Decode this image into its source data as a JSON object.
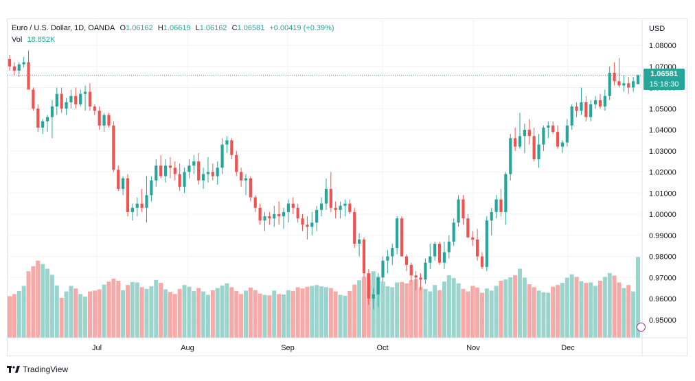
{
  "legend": {
    "symbol": "Euro / U.S. Dollar, 1D, OANDA",
    "open_label": "O",
    "open": "1.06162",
    "high_label": "H",
    "high": "1.06619",
    "low_label": "L",
    "low": "1.06162",
    "close_label": "C",
    "close": "1.06581",
    "change": "+0.00419 (+0.39%)",
    "vol_label": "Vol",
    "vol_value": "18.852K"
  },
  "price_axis": {
    "currency": "USD",
    "ticks": [
      "1.08000",
      "1.07000",
      "1.06000",
      "1.05000",
      "1.04000",
      "1.03000",
      "1.02000",
      "1.01000",
      "1.00000",
      "0.99000",
      "0.98000",
      "0.97000",
      "0.96000",
      "0.95000"
    ]
  },
  "time_axis": {
    "ticks": [
      "Jul",
      "Aug",
      "Sep",
      "Oct",
      "Nov",
      "Dec"
    ]
  },
  "last_price_tag": {
    "price": "1.06581",
    "countdown": "15:18:30"
  },
  "footer": {
    "brand": "TradingView"
  },
  "colors": {
    "up": "#26a69a",
    "down": "#ef5350",
    "up_vol": "#9bd3cd",
    "down_vol": "#f7a9a7",
    "grid": "#f0f3fa"
  },
  "chart_data": {
    "type": "candlestick",
    "title": "Euro / U.S. Dollar, 1D, OANDA",
    "currency": "USD",
    "ylim": [
      0.94,
      1.085
    ],
    "ohlc_vol": [
      [
        1.0735,
        1.0755,
        1.068,
        1.07,
        9.7
      ],
      [
        1.07,
        1.072,
        1.066,
        1.068,
        10.2
      ],
      [
        1.068,
        1.072,
        1.065,
        1.071,
        10.9
      ],
      [
        1.071,
        1.0745,
        1.0695,
        1.072,
        12.1
      ],
      [
        1.072,
        1.0775,
        1.066,
        1.059,
        15.5
      ],
      [
        1.059,
        1.06,
        1.049,
        1.05,
        16.7
      ],
      [
        1.05,
        1.052,
        1.039,
        1.041,
        18.0
      ],
      [
        1.041,
        1.045,
        1.038,
        1.044,
        17.2
      ],
      [
        1.044,
        1.047,
        1.039,
        1.046,
        16.1
      ],
      [
        1.046,
        1.054,
        1.036,
        1.051,
        14.7
      ],
      [
        1.051,
        1.06,
        1.047,
        1.057,
        12.2
      ],
      [
        1.057,
        1.06,
        1.048,
        1.05,
        9.3
      ],
      [
        1.05,
        1.055,
        1.047,
        1.053,
        10.8
      ],
      [
        1.053,
        1.059,
        1.05,
        1.056,
        12.1
      ],
      [
        1.056,
        1.06,
        1.05,
        1.052,
        11.5
      ],
      [
        1.052,
        1.059,
        1.051,
        1.057,
        10.2
      ],
      [
        1.057,
        1.061,
        1.049,
        1.058,
        9.6
      ],
      [
        1.058,
        1.062,
        1.049,
        1.051,
        10.8
      ],
      [
        1.051,
        1.052,
        1.047,
        1.049,
        11.0
      ],
      [
        1.049,
        1.051,
        1.04,
        1.042,
        11.3
      ],
      [
        1.042,
        1.048,
        1.039,
        1.047,
        12.4
      ],
      [
        1.047,
        1.048,
        1.041,
        1.042,
        13.1
      ],
      [
        1.042,
        1.044,
        1.02,
        1.021,
        13.8
      ],
      [
        1.021,
        1.023,
        1.011,
        1.012,
        13.3
      ],
      [
        1.012,
        1.018,
        1.009,
        1.017,
        11.1
      ],
      [
        1.017,
        1.019,
        0.999,
        1.001,
        12.3
      ],
      [
        1.001,
        1.005,
        0.997,
        1.003,
        13.0
      ],
      [
        1.003,
        1.008,
        0.999,
        1.005,
        12.9
      ],
      [
        1.005,
        1.012,
        1.001,
        1.003,
        11.8
      ],
      [
        1.003,
        1.018,
        0.996,
        1.009,
        11.4
      ],
      [
        1.009,
        1.018,
        1.006,
        1.016,
        12.0
      ],
      [
        1.016,
        1.026,
        1.013,
        1.023,
        13.5
      ],
      [
        1.023,
        1.028,
        1.017,
        1.018,
        12.8
      ],
      [
        1.018,
        1.026,
        1.015,
        1.023,
        11.3
      ],
      [
        1.023,
        1.027,
        1.017,
        1.022,
        10.7
      ],
      [
        1.022,
        1.025,
        1.016,
        1.019,
        10.2
      ],
      [
        1.019,
        1.024,
        1.011,
        1.013,
        11.4
      ],
      [
        1.013,
        1.022,
        1.01,
        1.02,
        12.3
      ],
      [
        1.02,
        1.026,
        1.017,
        1.023,
        11.9
      ],
      [
        1.023,
        1.028,
        1.019,
        1.025,
        10.9
      ],
      [
        1.025,
        1.029,
        1.014,
        1.016,
        11.6
      ],
      [
        1.016,
        1.022,
        1.012,
        1.019,
        10.8
      ],
      [
        1.019,
        1.027,
        1.015,
        1.02,
        10.0
      ],
      [
        1.02,
        1.024,
        1.016,
        1.018,
        11.1
      ],
      [
        1.018,
        1.025,
        1.014,
        1.022,
        11.6
      ],
      [
        1.022,
        1.036,
        1.019,
        1.033,
        12.2
      ],
      [
        1.033,
        1.037,
        1.029,
        1.035,
        12.7
      ],
      [
        1.035,
        1.036,
        1.026,
        1.028,
        11.8
      ],
      [
        1.028,
        1.03,
        1.018,
        1.02,
        10.9
      ],
      [
        1.02,
        1.022,
        1.013,
        1.016,
        10.2
      ],
      [
        1.016,
        1.019,
        1.009,
        1.017,
        11.0
      ],
      [
        1.017,
        1.018,
        1.006,
        1.008,
        11.7
      ],
      [
        1.008,
        1.009,
        1.001,
        1.003,
        11.1
      ],
      [
        1.003,
        1.005,
        0.995,
        0.997,
        10.3
      ],
      [
        0.997,
        1.001,
        0.992,
        0.999,
        10.0
      ],
      [
        0.999,
        1.001,
        0.995,
        0.998,
        9.9
      ],
      [
        0.998,
        1.004,
        0.994,
        1.0,
        11.0
      ],
      [
        1.0,
        1.006,
        0.995,
        0.999,
        10.2
      ],
      [
        0.999,
        1.003,
        0.993,
        1.001,
        10.1
      ],
      [
        1.001,
        1.007,
        0.996,
        1.005,
        11.1
      ],
      [
        1.005,
        1.008,
        1.0,
        1.003,
        10.9
      ],
      [
        1.003,
        1.005,
        0.996,
        0.998,
        11.8
      ],
      [
        0.998,
        1.0,
        0.992,
        0.995,
        11.5
      ],
      [
        0.995,
        0.999,
        0.988,
        0.994,
        11.9
      ],
      [
        0.994,
        1.001,
        0.99,
        0.996,
        12.1
      ],
      [
        0.996,
        1.004,
        0.992,
        1.002,
        12.3
      ],
      [
        1.002,
        1.008,
        0.999,
        1.005,
        12.0
      ],
      [
        1.005,
        1.017,
        1.002,
        1.012,
        11.8
      ],
      [
        1.012,
        1.02,
        1.001,
        1.003,
        11.6
      ],
      [
        1.003,
        1.006,
        0.998,
        1.002,
        10.8
      ],
      [
        1.002,
        1.006,
        0.998,
        1.004,
        10.0
      ],
      [
        1.004,
        1.007,
        0.999,
        1.005,
        9.8
      ],
      [
        1.005,
        1.007,
        1.0,
        1.001,
        10.9
      ],
      [
        1.001,
        1.003,
        0.984,
        0.986,
        12.4
      ],
      [
        0.986,
        0.991,
        0.98,
        0.988,
        13.4
      ],
      [
        0.988,
        0.989,
        0.97,
        0.972,
        14.2
      ],
      [
        0.972,
        0.974,
        0.957,
        0.96,
        15.0
      ],
      [
        0.96,
        0.965,
        0.955,
        0.962,
        15.5
      ],
      [
        0.962,
        0.972,
        0.956,
        0.97,
        14.3
      ],
      [
        0.97,
        0.98,
        0.968,
        0.978,
        13.1
      ],
      [
        0.978,
        0.983,
        0.972,
        0.98,
        12.0
      ],
      [
        0.98,
        0.986,
        0.976,
        0.984,
        11.8
      ],
      [
        0.984,
        0.999,
        0.981,
        0.998,
        12.9
      ],
      [
        0.998,
        0.999,
        0.98,
        0.98,
        13.0
      ],
      [
        0.98,
        0.981,
        0.973,
        0.976,
        12.7
      ],
      [
        0.976,
        0.977,
        0.968,
        0.971,
        13.4
      ],
      [
        0.971,
        0.973,
        0.964,
        0.97,
        13.7
      ],
      [
        0.97,
        0.972,
        0.964,
        0.969,
        11.8
      ],
      [
        0.969,
        0.979,
        0.967,
        0.977,
        11.4
      ],
      [
        0.977,
        0.986,
        0.974,
        0.98,
        10.8
      ],
      [
        0.98,
        0.987,
        0.978,
        0.986,
        12.3
      ],
      [
        0.986,
        0.987,
        0.976,
        0.977,
        11.1
      ],
      [
        0.977,
        0.987,
        0.974,
        0.982,
        13.1
      ],
      [
        0.982,
        0.99,
        0.979,
        0.987,
        14.6
      ],
      [
        0.987,
        0.998,
        0.985,
        0.996,
        13.9
      ],
      [
        0.996,
        1.009,
        0.994,
        1.007,
        12.7
      ],
      [
        1.007,
        1.009,
        0.995,
        0.998,
        11.4
      ],
      [
        0.998,
        1.0,
        0.989,
        0.989,
        10.8
      ],
      [
        0.989,
        0.992,
        0.985,
        0.988,
        12.1
      ],
      [
        0.988,
        0.993,
        0.978,
        0.98,
        11.7
      ],
      [
        0.98,
        0.982,
        0.974,
        0.975,
        10.5
      ],
      [
        0.975,
        0.999,
        0.973,
        0.997,
        11.5
      ],
      [
        0.997,
        1.003,
        0.99,
        1.001,
        11.0
      ],
      [
        1.001,
        1.009,
        0.998,
        1.007,
        12.1
      ],
      [
        1.007,
        1.012,
        0.999,
        1.001,
        13.3
      ],
      [
        1.001,
        1.02,
        0.995,
        1.019,
        13.6
      ],
      [
        1.019,
        1.038,
        1.016,
        1.036,
        14.1
      ],
      [
        1.036,
        1.041,
        1.03,
        1.032,
        14.6
      ],
      [
        1.032,
        1.048,
        1.031,
        1.037,
        16.1
      ],
      [
        1.037,
        1.043,
        1.029,
        1.04,
        14.0
      ],
      [
        1.04,
        1.045,
        1.033,
        1.037,
        12.5
      ],
      [
        1.037,
        1.041,
        1.025,
        1.026,
        11.8
      ],
      [
        1.026,
        1.038,
        1.022,
        1.033,
        11.0
      ],
      [
        1.033,
        1.042,
        1.03,
        1.041,
        10.6
      ],
      [
        1.041,
        1.044,
        1.036,
        1.042,
        10.5
      ],
      [
        1.042,
        1.044,
        1.038,
        1.039,
        11.9
      ],
      [
        1.039,
        1.042,
        1.031,
        1.032,
        12.3
      ],
      [
        1.032,
        1.035,
        1.029,
        1.034,
        12.8
      ],
      [
        1.034,
        1.045,
        1.032,
        1.042,
        14.0
      ],
      [
        1.042,
        1.052,
        1.04,
        1.051,
        14.8
      ],
      [
        1.051,
        1.053,
        1.046,
        1.049,
        14.2
      ],
      [
        1.049,
        1.06,
        1.047,
        1.053,
        13.2
      ],
      [
        1.053,
        1.056,
        1.044,
        1.046,
        12.8
      ],
      [
        1.046,
        1.054,
        1.044,
        1.052,
        12.9
      ],
      [
        1.052,
        1.056,
        1.05,
        1.054,
        12.1
      ],
      [
        1.054,
        1.057,
        1.05,
        1.051,
        13.3
      ],
      [
        1.051,
        1.059,
        1.049,
        1.056,
        14.2
      ],
      [
        1.056,
        1.07,
        1.054,
        1.067,
        15.1
      ],
      [
        1.067,
        1.072,
        1.061,
        1.063,
        14.5
      ],
      [
        1.063,
        1.074,
        1.06,
        1.061,
        12.9
      ],
      [
        1.061,
        1.066,
        1.058,
        1.062,
        11.6
      ],
      [
        1.062,
        1.065,
        1.057,
        1.06,
        12.3
      ],
      [
        1.06,
        1.065,
        1.058,
        1.063,
        10.8
      ],
      [
        1.0616,
        1.0662,
        1.0616,
        1.0658,
        18.852
      ]
    ]
  }
}
